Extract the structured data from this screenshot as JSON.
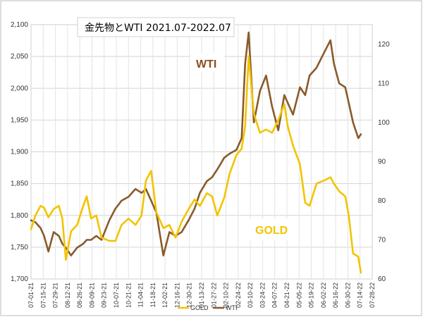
{
  "chart_data": {
    "type": "line",
    "title": "金先物とWTI 2021.07-2022.07",
    "label_wti": "WTI",
    "label_gold": "GOLD",
    "colors": {
      "GOLD": "#f2c400",
      "WTI": "#8a5a2b"
    },
    "y_left": {
      "min": 1700,
      "max": 2100,
      "ticks": [
        "1,700",
        "1,750",
        "1,800",
        "1,850",
        "1,900",
        "1,950",
        "2,000",
        "2,050",
        "2,100"
      ],
      "tick_values": [
        1700,
        1750,
        1800,
        1850,
        1900,
        1950,
        2000,
        2050,
        2100
      ]
    },
    "y_right": {
      "min": 60,
      "max": 125,
      "ticks": [
        "60",
        "70",
        "80",
        "90",
        "100",
        "110",
        "120"
      ],
      "tick_values": [
        60,
        70,
        80,
        90,
        100,
        110,
        120
      ]
    },
    "x_ticks": [
      "07-01-21",
      "07-15-21",
      "07-29-21",
      "08-12-21",
      "08-26-21",
      "09-09-21",
      "09-23-21",
      "10-07-21",
      "10-21-21",
      "11-04-21",
      "11-18-21",
      "12-02-21",
      "12-16-21",
      "12-30-21",
      "01-13-22",
      "01-27-22",
      "02-10-22",
      "02-24-22",
      "03-10-22",
      "03-24-22",
      "04-07-22",
      "04-21-22",
      "05-05-22",
      "05-19-22",
      "06-02-22",
      "06-16-22",
      "06-30-22",
      "07-14-22",
      "07-28-22"
    ],
    "legend": [
      {
        "name": "GOLD",
        "color": "#f2c400"
      },
      {
        "name": "WTI",
        "color": "#8a5a2b"
      }
    ],
    "series": [
      {
        "name": "GOLD",
        "axis": "left",
        "color": "#f2c400",
        "x": [
          "2021-07-01",
          "2021-07-06",
          "2021-07-12",
          "2021-07-16",
          "2021-07-21",
          "2021-07-27",
          "2021-08-02",
          "2021-08-06",
          "2021-08-10",
          "2021-08-16",
          "2021-08-23",
          "2021-08-30",
          "2021-09-03",
          "2021-09-08",
          "2021-09-14",
          "2021-09-20",
          "2021-09-29",
          "2021-10-06",
          "2021-10-13",
          "2021-10-21",
          "2021-10-29",
          "2021-11-05",
          "2021-11-10",
          "2021-11-16",
          "2021-11-22",
          "2021-11-30",
          "2021-12-07",
          "2021-12-14",
          "2021-12-21",
          "2021-12-29",
          "2022-01-05",
          "2022-01-11",
          "2022-01-19",
          "2022-01-25",
          "2022-01-31",
          "2022-02-08",
          "2022-02-14",
          "2022-02-22",
          "2022-02-28",
          "2022-03-04",
          "2022-03-08",
          "2022-03-14",
          "2022-03-21",
          "2022-03-28",
          "2022-04-04",
          "2022-04-11",
          "2022-04-18",
          "2022-04-22",
          "2022-04-28",
          "2022-05-06",
          "2022-05-12",
          "2022-05-17",
          "2022-05-25",
          "2022-06-03",
          "2022-06-10",
          "2022-06-14",
          "2022-06-20",
          "2022-06-27",
          "2022-07-01",
          "2022-07-06",
          "2022-07-12",
          "2022-07-15"
        ],
        "values": [
          1778,
          1800,
          1815,
          1812,
          1797,
          1810,
          1815,
          1795,
          1730,
          1775,
          1785,
          1815,
          1830,
          1795,
          1800,
          1765,
          1760,
          1760,
          1785,
          1795,
          1785,
          1800,
          1855,
          1870,
          1805,
          1780,
          1785,
          1765,
          1790,
          1810,
          1825,
          1815,
          1835,
          1830,
          1800,
          1828,
          1865,
          1895,
          1905,
          1940,
          2050,
          1960,
          1930,
          1935,
          1930,
          1950,
          1975,
          1940,
          1910,
          1880,
          1820,
          1815,
          1850,
          1855,
          1860,
          1850,
          1838,
          1830,
          1800,
          1740,
          1735,
          1710
        ]
      },
      {
        "name": "WTI",
        "axis": "right",
        "color": "#8a5a2b",
        "x": [
          "2021-07-01",
          "2021-07-06",
          "2021-07-12",
          "2021-07-16",
          "2021-07-21",
          "2021-07-27",
          "2021-08-02",
          "2021-08-06",
          "2021-08-10",
          "2021-08-16",
          "2021-08-23",
          "2021-08-30",
          "2021-09-03",
          "2021-09-08",
          "2021-09-14",
          "2021-09-20",
          "2021-09-29",
          "2021-10-06",
          "2021-10-13",
          "2021-10-21",
          "2021-10-29",
          "2021-11-05",
          "2021-11-10",
          "2021-11-16",
          "2021-11-22",
          "2021-11-30",
          "2021-12-07",
          "2021-12-14",
          "2021-12-21",
          "2021-12-29",
          "2022-01-05",
          "2022-01-11",
          "2022-01-19",
          "2022-01-25",
          "2022-01-31",
          "2022-02-08",
          "2022-02-14",
          "2022-02-22",
          "2022-02-28",
          "2022-03-04",
          "2022-03-08",
          "2022-03-14",
          "2022-03-21",
          "2022-03-28",
          "2022-04-04",
          "2022-04-11",
          "2022-04-18",
          "2022-04-22",
          "2022-04-28",
          "2022-05-06",
          "2022-05-12",
          "2022-05-17",
          "2022-05-25",
          "2022-06-03",
          "2022-06-10",
          "2022-06-14",
          "2022-06-20",
          "2022-06-27",
          "2022-07-01",
          "2022-07-06",
          "2022-07-12",
          "2022-07-15"
        ],
        "values": [
          75,
          74.5,
          73,
          71,
          67,
          72,
          71,
          69,
          68,
          66,
          68,
          69,
          70,
          70,
          71,
          70,
          75,
          78,
          80,
          81,
          83,
          82,
          83,
          80,
          77,
          66,
          72,
          71,
          72,
          75,
          78,
          82,
          85,
          86,
          88,
          91,
          92,
          93,
          96,
          115,
          123,
          100,
          108,
          112,
          104,
          98,
          107,
          105,
          102,
          109,
          107,
          112,
          114,
          118,
          121,
          115,
          110,
          109,
          105,
          100,
          96,
          97
        ]
      }
    ]
  }
}
